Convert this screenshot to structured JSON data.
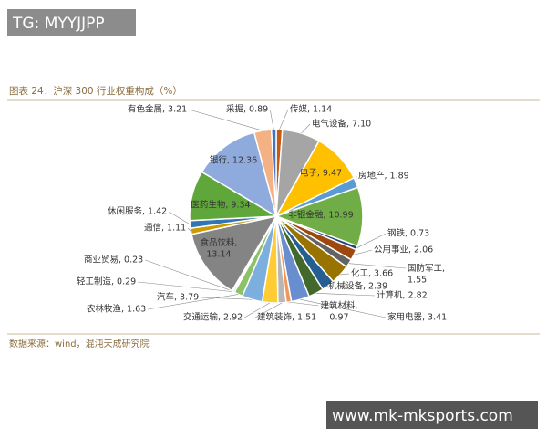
{
  "watermark_top": "TG: MYYJJPP",
  "chart_data": {
    "type": "pie",
    "title": "图表 24：沪深 300 行业权重构成（%）",
    "values": [
      1.14,
      7.1,
      9.47,
      1.89,
      10.99,
      0.73,
      2.06,
      1.55,
      3.66,
      2.39,
      2.82,
      3.41,
      0.97,
      1.51,
      2.92,
      3.79,
      1.63,
      0.29,
      0.23,
      13.14,
      1.11,
      1.42,
      9.34,
      12.36,
      3.21,
      0.89
    ],
    "value_labels": [
      "传媒, 1.14",
      "电气设备, 7.10",
      "电子, 9.47",
      "房地产, 1.89",
      "非银金融, 10.99",
      "钢铁, 0.73",
      "公用事业, 2.06",
      "国防军工,\n1.55",
      "化工, 3.66",
      "机械设备, 2.39",
      "计算机, 2.82",
      "家用电器, 3.41",
      "建筑材料,\n0.97",
      "建筑装饰, 1.51",
      "交通运输, 2.92",
      "汽车, 3.79",
      "农林牧渔, 1.63",
      "轻工制造, 0.29",
      "商业贸易, 0.23",
      "食品饮料,\n13.14",
      "通信, 1.11",
      "休闲服务, 1.42",
      "医药生物, 9.34",
      "银行, 12.36",
      "有色金属, 3.21",
      "采掘, 0.89"
    ],
    "colors": [
      "#c55a11",
      "#a5a5a5",
      "#ffc000",
      "#5b9bd5",
      "#70ad47",
      "#264478",
      "#9e480e",
      "#636363",
      "#997300",
      "#255e91",
      "#43682b",
      "#698ed0",
      "#f1975a",
      "#b7b7b7",
      "#ffcd33",
      "#7cafdd",
      "#8cc168",
      "#335aa1",
      "#d26012",
      "#848484",
      "#cc9a00",
      "#3275b4",
      "#5fa73a",
      "#8faadc",
      "#f4b183",
      "#4472c4"
    ]
  },
  "source": "数据来源：wind，混沌天成研究院",
  "watermark_bottom": "www.mk-mksports.com"
}
